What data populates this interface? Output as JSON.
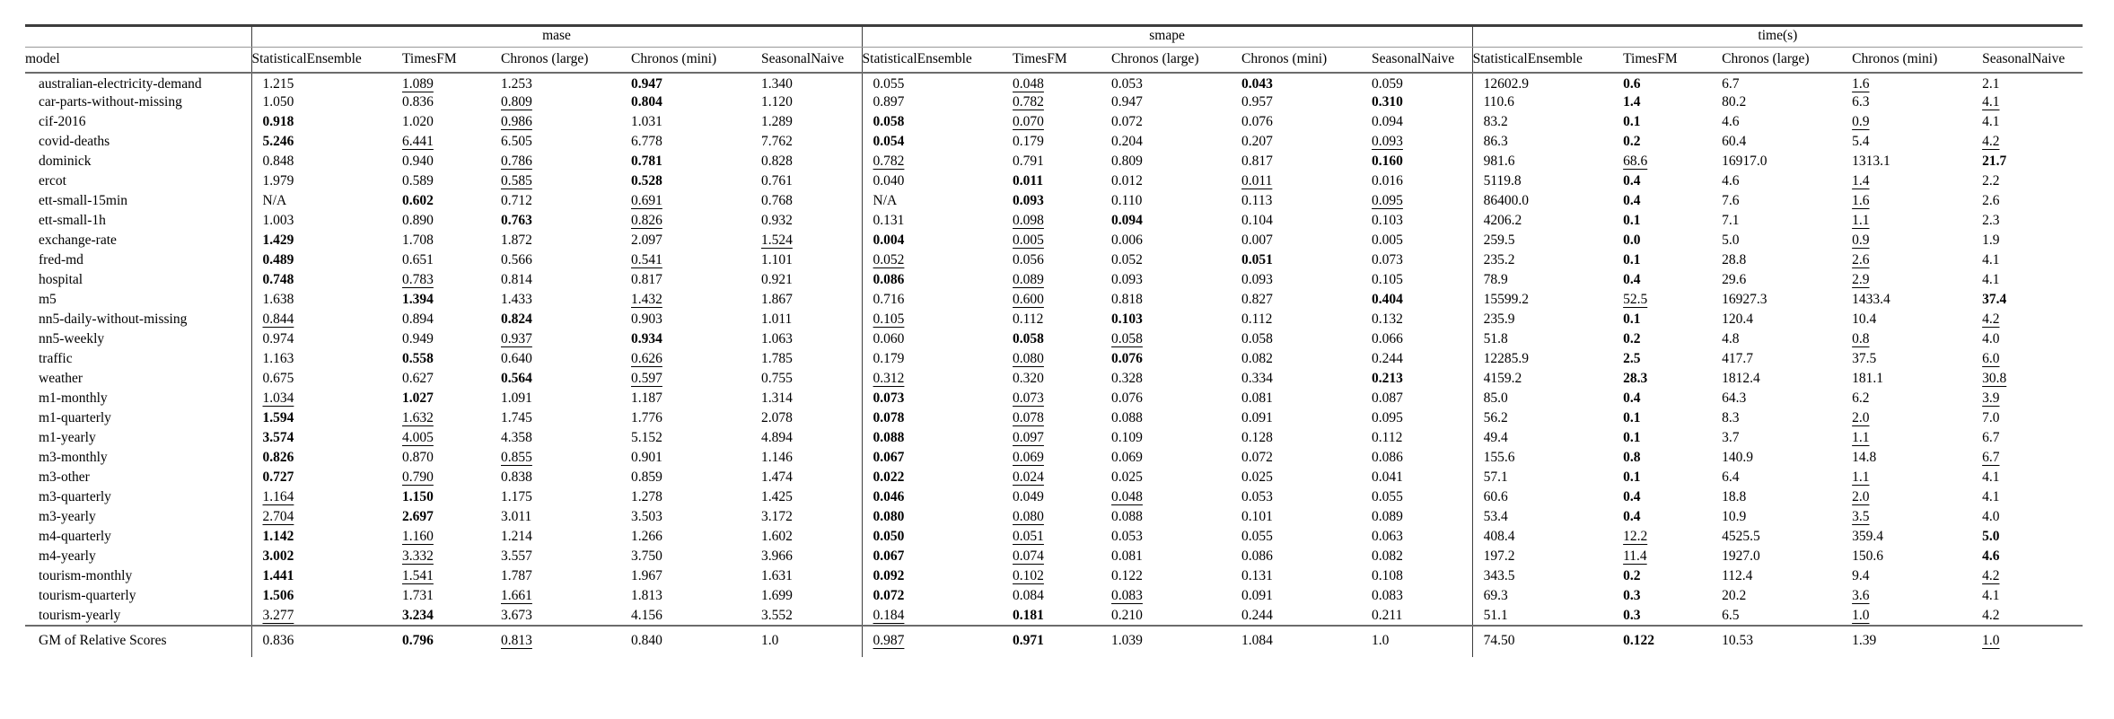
{
  "colors": {
    "text": "#000000",
    "rule_dark": "#3d3d3d",
    "rule_light": "#999999"
  },
  "value_style_legend": {
    "b": "best value (bold)",
    "u": "second-best value (underlined)"
  },
  "table": {
    "header": {
      "model_label": "model",
      "groups": [
        {
          "label": "mase",
          "columns": [
            "StatisticalEnsemble",
            "TimesFM",
            "Chronos (large)",
            "Chronos (mini)",
            "SeasonalNaive"
          ]
        },
        {
          "label": "smape",
          "columns": [
            "StatisticalEnsemble",
            "TimesFM",
            "Chronos (large)",
            "Chronos (mini)",
            "SeasonalNaive"
          ]
        },
        {
          "label": "time(s)",
          "columns": [
            "StatisticalEnsemble",
            "TimesFM",
            "Chronos (large)",
            "Chronos (mini)",
            "SeasonalNaive"
          ]
        }
      ]
    },
    "rows": [
      {
        "model": "australian-electricity-demand",
        "mase": [
          "1.215",
          "u:1.089",
          "1.253",
          "b:0.947",
          "1.340"
        ],
        "smape": [
          "0.055",
          "u:0.048",
          "0.053",
          "b:0.043",
          "0.059"
        ],
        "time": [
          "12602.9",
          "b:0.6",
          "6.7",
          "u:1.6",
          "2.1"
        ]
      },
      {
        "model": "car-parts-without-missing",
        "mase": [
          "1.050",
          "0.836",
          "u:0.809",
          "b:0.804",
          "1.120"
        ],
        "smape": [
          "0.897",
          "u:0.782",
          "0.947",
          "0.957",
          "b:0.310"
        ],
        "time": [
          "110.6",
          "b:1.4",
          "80.2",
          "6.3",
          "u:4.1"
        ]
      },
      {
        "model": "cif-2016",
        "mase": [
          "b:0.918",
          "1.020",
          "u:0.986",
          "1.031",
          "1.289"
        ],
        "smape": [
          "b:0.058",
          "u:0.070",
          "0.072",
          "0.076",
          "0.094"
        ],
        "time": [
          "83.2",
          "b:0.1",
          "4.6",
          "u:0.9",
          "4.1"
        ]
      },
      {
        "model": "covid-deaths",
        "mase": [
          "b:5.246",
          "u:6.441",
          "6.505",
          "6.778",
          "7.762"
        ],
        "smape": [
          "b:0.054",
          "0.179",
          "0.204",
          "0.207",
          "u:0.093"
        ],
        "time": [
          "86.3",
          "b:0.2",
          "60.4",
          "5.4",
          "u:4.2"
        ]
      },
      {
        "model": "dominick",
        "mase": [
          "0.848",
          "0.940",
          "u:0.786",
          "b:0.781",
          "0.828"
        ],
        "smape": [
          "u:0.782",
          "0.791",
          "0.809",
          "0.817",
          "b:0.160"
        ],
        "time": [
          "981.6",
          "u:68.6",
          "16917.0",
          "1313.1",
          "b:21.7"
        ]
      },
      {
        "model": "ercot",
        "mase": [
          "1.979",
          "0.589",
          "u:0.585",
          "b:0.528",
          "0.761"
        ],
        "smape": [
          "0.040",
          "b:0.011",
          "0.012",
          "u:0.011",
          "0.016"
        ],
        "time": [
          "5119.8",
          "b:0.4",
          "4.6",
          "u:1.4",
          "2.2"
        ]
      },
      {
        "model": "ett-small-15min",
        "mase": [
          "N/A",
          "b:0.602",
          "0.712",
          "u:0.691",
          "0.768"
        ],
        "smape": [
          "N/A",
          "b:0.093",
          "0.110",
          "0.113",
          "u:0.095"
        ],
        "time": [
          "86400.0",
          "b:0.4",
          "7.6",
          "u:1.6",
          "2.6"
        ]
      },
      {
        "model": "ett-small-1h",
        "mase": [
          "1.003",
          "0.890",
          "b:0.763",
          "u:0.826",
          "0.932"
        ],
        "smape": [
          "0.131",
          "u:0.098",
          "b:0.094",
          "0.104",
          "0.103"
        ],
        "time": [
          "4206.2",
          "b:0.1",
          "7.1",
          "u:1.1",
          "2.3"
        ]
      },
      {
        "model": "exchange-rate",
        "mase": [
          "b:1.429",
          "1.708",
          "1.872",
          "2.097",
          "u:1.524"
        ],
        "smape": [
          "b:0.004",
          "u:0.005",
          "0.006",
          "0.007",
          "0.005"
        ],
        "time": [
          "259.5",
          "b:0.0",
          "5.0",
          "u:0.9",
          "1.9"
        ]
      },
      {
        "model": "fred-md",
        "mase": [
          "b:0.489",
          "0.651",
          "0.566",
          "u:0.541",
          "1.101"
        ],
        "smape": [
          "u:0.052",
          "0.056",
          "0.052",
          "b:0.051",
          "0.073"
        ],
        "time": [
          "235.2",
          "b:0.1",
          "28.8",
          "u:2.6",
          "4.1"
        ]
      },
      {
        "model": "hospital",
        "mase": [
          "b:0.748",
          "u:0.783",
          "0.814",
          "0.817",
          "0.921"
        ],
        "smape": [
          "b:0.086",
          "u:0.089",
          "0.093",
          "0.093",
          "0.105"
        ],
        "time": [
          "78.9",
          "b:0.4",
          "29.6",
          "u:2.9",
          "4.1"
        ]
      },
      {
        "model": "m5",
        "mase": [
          "1.638",
          "b:1.394",
          "1.433",
          "u:1.432",
          "1.867"
        ],
        "smape": [
          "0.716",
          "u:0.600",
          "0.818",
          "0.827",
          "b:0.404"
        ],
        "time": [
          "15599.2",
          "u:52.5",
          "16927.3",
          "1433.4",
          "b:37.4"
        ]
      },
      {
        "model": "nn5-daily-without-missing",
        "mase": [
          "u:0.844",
          "0.894",
          "b:0.824",
          "0.903",
          "1.011"
        ],
        "smape": [
          "u:0.105",
          "0.112",
          "b:0.103",
          "0.112",
          "0.132"
        ],
        "time": [
          "235.9",
          "b:0.1",
          "120.4",
          "10.4",
          "u:4.2"
        ]
      },
      {
        "model": "nn5-weekly",
        "mase": [
          "0.974",
          "0.949",
          "u:0.937",
          "b:0.934",
          "1.063"
        ],
        "smape": [
          "0.060",
          "b:0.058",
          "u:0.058",
          "0.058",
          "0.066"
        ],
        "time": [
          "51.8",
          "b:0.2",
          "4.8",
          "u:0.8",
          "4.0"
        ]
      },
      {
        "model": "traffic",
        "mase": [
          "1.163",
          "b:0.558",
          "0.640",
          "u:0.626",
          "1.785"
        ],
        "smape": [
          "0.179",
          "u:0.080",
          "b:0.076",
          "0.082",
          "0.244"
        ],
        "time": [
          "12285.9",
          "b:2.5",
          "417.7",
          "37.5",
          "u:6.0"
        ]
      },
      {
        "model": "weather",
        "mase": [
          "0.675",
          "0.627",
          "b:0.564",
          "u:0.597",
          "0.755"
        ],
        "smape": [
          "u:0.312",
          "0.320",
          "0.328",
          "0.334",
          "b:0.213"
        ],
        "time": [
          "4159.2",
          "b:28.3",
          "1812.4",
          "181.1",
          "u:30.8"
        ]
      },
      {
        "model": "m1-monthly",
        "mase": [
          "u:1.034",
          "b:1.027",
          "1.091",
          "1.187",
          "1.314"
        ],
        "smape": [
          "b:0.073",
          "u:0.073",
          "0.076",
          "0.081",
          "0.087"
        ],
        "time": [
          "85.0",
          "b:0.4",
          "64.3",
          "6.2",
          "u:3.9"
        ]
      },
      {
        "model": "m1-quarterly",
        "mase": [
          "b:1.594",
          "u:1.632",
          "1.745",
          "1.776",
          "2.078"
        ],
        "smape": [
          "b:0.078",
          "u:0.078",
          "0.088",
          "0.091",
          "0.095"
        ],
        "time": [
          "56.2",
          "b:0.1",
          "8.3",
          "u:2.0",
          "7.0"
        ]
      },
      {
        "model": "m1-yearly",
        "mase": [
          "b:3.574",
          "u:4.005",
          "4.358",
          "5.152",
          "4.894"
        ],
        "smape": [
          "b:0.088",
          "u:0.097",
          "0.109",
          "0.128",
          "0.112"
        ],
        "time": [
          "49.4",
          "b:0.1",
          "3.7",
          "u:1.1",
          "6.7"
        ]
      },
      {
        "model": "m3-monthly",
        "mase": [
          "b:0.826",
          "0.870",
          "u:0.855",
          "0.901",
          "1.146"
        ],
        "smape": [
          "b:0.067",
          "u:0.069",
          "0.069",
          "0.072",
          "0.086"
        ],
        "time": [
          "155.6",
          "b:0.8",
          "140.9",
          "14.8",
          "u:6.7"
        ]
      },
      {
        "model": "m3-other",
        "mase": [
          "b:0.727",
          "u:0.790",
          "0.838",
          "0.859",
          "1.474"
        ],
        "smape": [
          "b:0.022",
          "u:0.024",
          "0.025",
          "0.025",
          "0.041"
        ],
        "time": [
          "57.1",
          "b:0.1",
          "6.4",
          "u:1.1",
          "4.1"
        ]
      },
      {
        "model": "m3-quarterly",
        "mase": [
          "u:1.164",
          "b:1.150",
          "1.175",
          "1.278",
          "1.425"
        ],
        "smape": [
          "b:0.046",
          "0.049",
          "u:0.048",
          "0.053",
          "0.055"
        ],
        "time": [
          "60.6",
          "b:0.4",
          "18.8",
          "u:2.0",
          "4.1"
        ]
      },
      {
        "model": "m3-yearly",
        "mase": [
          "u:2.704",
          "b:2.697",
          "3.011",
          "3.503",
          "3.172"
        ],
        "smape": [
          "b:0.080",
          "u:0.080",
          "0.088",
          "0.101",
          "0.089"
        ],
        "time": [
          "53.4",
          "b:0.4",
          "10.9",
          "u:3.5",
          "4.0"
        ]
      },
      {
        "model": "m4-quarterly",
        "mase": [
          "b:1.142",
          "u:1.160",
          "1.214",
          "1.266",
          "1.602"
        ],
        "smape": [
          "b:0.050",
          "u:0.051",
          "0.053",
          "0.055",
          "0.063"
        ],
        "time": [
          "408.4",
          "u:12.2",
          "4525.5",
          "359.4",
          "b:5.0"
        ]
      },
      {
        "model": "m4-yearly",
        "mase": [
          "b:3.002",
          "u:3.332",
          "3.557",
          "3.750",
          "3.966"
        ],
        "smape": [
          "b:0.067",
          "u:0.074",
          "0.081",
          "0.086",
          "0.082"
        ],
        "time": [
          "197.2",
          "u:11.4",
          "1927.0",
          "150.6",
          "b:4.6"
        ]
      },
      {
        "model": "tourism-monthly",
        "mase": [
          "b:1.441",
          "u:1.541",
          "1.787",
          "1.967",
          "1.631"
        ],
        "smape": [
          "b:0.092",
          "u:0.102",
          "0.122",
          "0.131",
          "0.108"
        ],
        "time": [
          "343.5",
          "b:0.2",
          "112.4",
          "9.4",
          "u:4.2"
        ]
      },
      {
        "model": "tourism-quarterly",
        "mase": [
          "b:1.506",
          "1.731",
          "u:1.661",
          "1.813",
          "1.699"
        ],
        "smape": [
          "b:0.072",
          "0.084",
          "u:0.083",
          "0.091",
          "0.083"
        ],
        "time": [
          "69.3",
          "b:0.3",
          "20.2",
          "u:3.6",
          "4.1"
        ]
      },
      {
        "model": "tourism-yearly",
        "mase": [
          "u:3.277",
          "b:3.234",
          "3.673",
          "4.156",
          "3.552"
        ],
        "smape": [
          "u:0.184",
          "b:0.181",
          "0.210",
          "0.244",
          "0.211"
        ],
        "time": [
          "51.1",
          "b:0.3",
          "6.5",
          "u:1.0",
          "4.2"
        ]
      }
    ],
    "summary": {
      "model": "GM of Relative Scores",
      "mase": [
        "0.836",
        "b:0.796",
        "u:0.813",
        "0.840",
        "1.0"
      ],
      "smape": [
        "u:0.987",
        "b:0.971",
        "1.039",
        "1.084",
        "1.0"
      ],
      "time": [
        "74.50",
        "b:0.122",
        "10.53",
        "1.39",
        "u:1.0"
      ]
    }
  }
}
